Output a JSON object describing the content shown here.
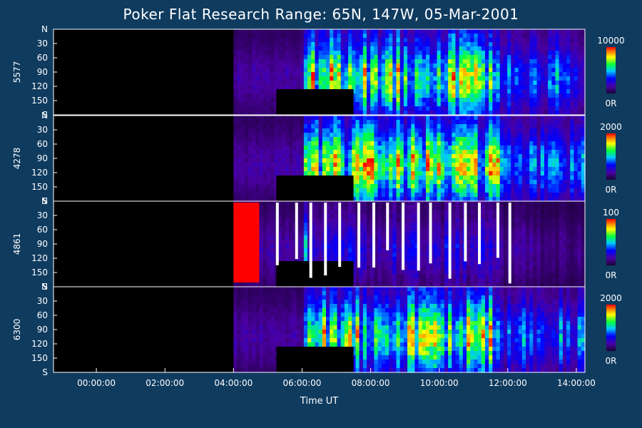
{
  "chart_data": {
    "type": "heatmap",
    "title": "Poker Flat Research Range: 65N, 147W, 05-Mar-2001",
    "xlabel": "Time UT",
    "x_ticks": [
      "00:00:00",
      "02:00:00",
      "04:00:00",
      "06:00:00",
      "08:00:00",
      "10:00:00",
      "12:00:00",
      "14:00:00"
    ],
    "x_range_hours": [
      -1.25,
      14.25
    ],
    "y_ticks": [
      "N",
      "30",
      "60",
      "90",
      "120",
      "150",
      "S"
    ],
    "y_values": [
      0,
      30,
      60,
      90,
      120,
      150,
      180
    ],
    "colorbar_min_label": "0R",
    "panels": [
      {
        "name": "5577",
        "colorbar_max": "10000"
      },
      {
        "name": "4278",
        "colorbar_max": "2000"
      },
      {
        "name": "4861",
        "colorbar_max": "100"
      },
      {
        "name": "6300",
        "colorbar_max": "2000"
      }
    ],
    "data_start_hours": 4.0,
    "data_end_hours": 14.25
  },
  "colors": {
    "background": "#0f3b5f",
    "no_data": "#000000",
    "frame": "#ffffff"
  }
}
